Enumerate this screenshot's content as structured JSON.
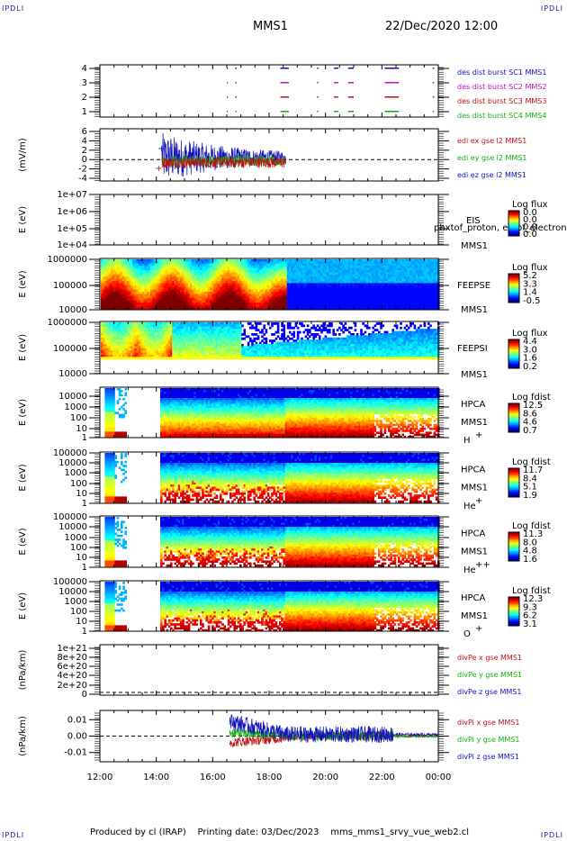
{
  "header": {
    "corner_label": "IPDLI",
    "spacecraft": "MMS1",
    "date_time": "22/Dec/2020 12:00"
  },
  "footer": {
    "produced_by": "Produced by cl (IRAP)",
    "printing_date": "Printing date: 03/Dec/2023",
    "script_name": "mms_mms1_srvy_vue_web2.cl"
  },
  "x_axis": {
    "ticks": [
      "12:00",
      "14:00",
      "16:00",
      "18:00",
      "20:00",
      "22:00",
      "00:00"
    ]
  },
  "chart_data": [
    {
      "type": "scatter",
      "panel": "burst",
      "yticks": [
        "4",
        "3",
        "2",
        "1"
      ],
      "series": [
        {
          "name": "des dist burst SC1 MMS1",
          "color": "#1010c0",
          "y": 4
        },
        {
          "name": "des dist burst SC2 MMS2",
          "color": "#c010c0",
          "y": 3
        },
        {
          "name": "des dist burst SC3 MMS3",
          "color": "#c01010",
          "y": 2
        },
        {
          "name": "des dist burst SC4 MMS4",
          "color": "#10b010",
          "y": 1
        }
      ],
      "intervals_hours": [
        [
          16.8,
          16.85
        ],
        [
          18.4,
          18.7
        ],
        [
          19.7,
          19.75
        ],
        [
          20.3,
          20.45
        ],
        [
          20.8,
          21.0
        ],
        [
          22.1,
          22.6
        ],
        [
          23.8,
          23.85
        ]
      ]
    },
    {
      "type": "line",
      "panel": "edi",
      "ylabel": "(mV/m)",
      "yticks": [
        "6",
        "4",
        "2",
        "0",
        "-2",
        "-4"
      ],
      "ylim": [
        -4,
        6
      ],
      "series": [
        {
          "name": "edi ex gse l2 MMS1",
          "color": "#c01010"
        },
        {
          "name": "edi ey gse l2 MMS1",
          "color": "#10b010"
        },
        {
          "name": "edi ez gse l2 MMS1",
          "color": "#1010c0"
        }
      ]
    },
    {
      "type": "heatmap",
      "panel": "eis",
      "ylabel": "E (eV)",
      "yticks": [
        "1e+07",
        "1e+06",
        "1e+05",
        "1e+04"
      ],
      "label": "EIS",
      "overlay": "phxtof_proton, extof_electron, Heavy electron to",
      "sublabel": "MMS1",
      "colorbar_title": "Log flux",
      "colorbar_ticks": [
        "0.0",
        "0.0",
        "0.0",
        "0.0"
      ]
    },
    {
      "type": "heatmap",
      "panel": "feepse",
      "ylabel": "E (eV)",
      "yticks": [
        "1000000",
        "100000",
        "10000"
      ],
      "label": "FEEPSE",
      "sublabel": "MMS1",
      "colorbar_title": "Log flux",
      "colorbar_ticks": [
        "5.2",
        "3.3",
        "1.4",
        "-0.5"
      ]
    },
    {
      "type": "heatmap",
      "panel": "feepsi",
      "ylabel": "E (eV)",
      "yticks": [
        "1000000",
        "100000",
        "10000"
      ],
      "label": "FEEPSI",
      "sublabel": "MMS1",
      "colorbar_title": "Log flux",
      "colorbar_ticks": [
        "4.4",
        "3.0",
        "1.6",
        "0.2"
      ]
    },
    {
      "type": "heatmap",
      "panel": "hpca_h",
      "ylabel": "E (eV)",
      "yticks": [
        "10000",
        "1000",
        "100",
        "10",
        "1"
      ],
      "label": "HPCA",
      "sublabel": "MMS1",
      "species": "H",
      "charge": "+",
      "colorbar_title": "Log fdist",
      "colorbar_ticks": [
        "12.5",
        "8.6",
        "4.6",
        "0.7"
      ]
    },
    {
      "type": "heatmap",
      "panel": "hpca_he1",
      "ylabel": "E (eV)",
      "yticks": [
        "100000",
        "10000",
        "1000",
        "100",
        "10",
        "1"
      ],
      "label": "HPCA",
      "sublabel": "MMS1",
      "species": "He",
      "charge": "+",
      "colorbar_title": "Log fdist",
      "colorbar_ticks": [
        "11.7",
        "8.4",
        "5.1",
        "1.9"
      ]
    },
    {
      "type": "heatmap",
      "panel": "hpca_he2",
      "ylabel": "E (eV)",
      "yticks": [
        "100000",
        "10000",
        "1000",
        "100",
        "10",
        "1"
      ],
      "label": "HPCA",
      "sublabel": "MMS1",
      "species": "He",
      "charge": "++",
      "colorbar_title": "Log fdist",
      "colorbar_ticks": [
        "11.3",
        "8.0",
        "4.8",
        "1.6"
      ]
    },
    {
      "type": "heatmap",
      "panel": "hpca_o",
      "ylabel": "E (eV)",
      "yticks": [
        "100000",
        "10000",
        "1000",
        "100",
        "10",
        "1"
      ],
      "label": "HPCA",
      "sublabel": "MMS1",
      "species": "O",
      "charge": "+",
      "colorbar_title": "Log fdist",
      "colorbar_ticks": [
        "12.3",
        "9.3",
        "6.2",
        "3.1"
      ]
    },
    {
      "type": "line",
      "panel": "divpe",
      "ylabel": "(nPa/km)",
      "yticks": [
        "1e+21",
        "8e+20",
        "6e+20",
        "4e+20",
        "2e+20",
        "0"
      ],
      "series": [
        {
          "name": "divPe x gse MMS1",
          "color": "#c01010"
        },
        {
          "name": "divPe y gse MMS1",
          "color": "#10b010"
        },
        {
          "name": "divPe z gse MMS1",
          "color": "#1010c0"
        }
      ]
    },
    {
      "type": "line",
      "panel": "divpi",
      "ylabel": "(nPa/km)",
      "yticks": [
        "0.01",
        "0.00",
        "-0.01"
      ],
      "ylim": [
        -0.014,
        0.014
      ],
      "series": [
        {
          "name": "divPi x gse MMS1",
          "color": "#c01010"
        },
        {
          "name": "divPi y gse MMS1",
          "color": "#10b010"
        },
        {
          "name": "divPi z gse MMS1",
          "color": "#1010c0"
        }
      ]
    }
  ]
}
